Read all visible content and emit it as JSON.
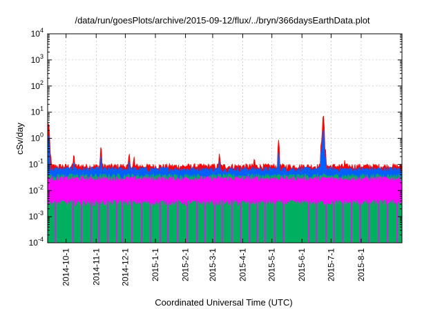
{
  "chart_data": {
    "type": "line",
    "title": "/data/run/goesPlots/archive/2015-09-12/flux/../bryn/366daysEarthData.plot",
    "xlabel": "Coordinated Universal Time (UTC)",
    "ylabel": "cSv/day",
    "yscale": "log",
    "ylim": [
      0.0001,
      10000
    ],
    "xlim": [
      "2014-09-12",
      "2015-09-12"
    ],
    "grid": true,
    "y_ticks": [
      {
        "value": 0.0001,
        "base": "10",
        "exp": "-4"
      },
      {
        "value": 0.001,
        "base": "10",
        "exp": "-3"
      },
      {
        "value": 0.01,
        "base": "10",
        "exp": "-2"
      },
      {
        "value": 0.1,
        "base": "10",
        "exp": "-1"
      },
      {
        "value": 1,
        "base": "10",
        "exp": "0"
      },
      {
        "value": 10,
        "base": "10",
        "exp": "1"
      },
      {
        "value": 100,
        "base": "10",
        "exp": "2"
      },
      {
        "value": 1000,
        "base": "10",
        "exp": "3"
      },
      {
        "value": 10000,
        "base": "10",
        "exp": "4"
      }
    ],
    "x_ticks": [
      {
        "date": "2014-10-01",
        "label": "2014-10-1"
      },
      {
        "date": "2014-11-01",
        "label": "2014-11-1"
      },
      {
        "date": "2014-12-01",
        "label": "2014-12-1"
      },
      {
        "date": "2015-01-01",
        "label": "2015-1-1"
      },
      {
        "date": "2015-02-01",
        "label": "2015-2-1"
      },
      {
        "date": "2015-03-01",
        "label": "2015-3-1"
      },
      {
        "date": "2015-04-01",
        "label": "2015-4-1"
      },
      {
        "date": "2015-05-01",
        "label": "2015-5-1"
      },
      {
        "date": "2015-06-01",
        "label": "2015-6-1"
      },
      {
        "date": "2015-07-01",
        "label": "2015-7-1"
      },
      {
        "date": "2015-08-01",
        "label": "2015-8-1"
      }
    ],
    "series": [
      {
        "color": "#ff0000",
        "baseline": 0.085,
        "spikes": [
          {
            "date": "2014-09-13",
            "value": 4.5
          },
          {
            "date": "2014-09-15",
            "value": 0.3
          },
          {
            "date": "2014-10-09",
            "value": 0.28
          },
          {
            "date": "2014-11-06",
            "value": 0.55
          },
          {
            "date": "2014-12-05",
            "value": 0.3
          },
          {
            "date": "2014-12-10",
            "value": 0.22
          },
          {
            "date": "2015-03-08",
            "value": 0.28
          },
          {
            "date": "2015-04-13",
            "value": 0.2
          },
          {
            "date": "2015-05-08",
            "value": 0.9
          },
          {
            "date": "2015-06-21",
            "value": 0.85
          },
          {
            "date": "2015-06-23",
            "value": 9.0
          },
          {
            "date": "2015-06-25",
            "value": 0.5
          },
          {
            "date": "2015-07-15",
            "value": 0.15
          }
        ]
      },
      {
        "color": "#0060ff",
        "baseline": 0.065,
        "spikes": [
          {
            "date": "2014-09-13",
            "value": 1.6
          },
          {
            "date": "2014-10-09",
            "value": 0.15
          },
          {
            "date": "2014-11-06",
            "value": 0.25
          },
          {
            "date": "2014-12-05",
            "value": 0.15
          },
          {
            "date": "2015-03-08",
            "value": 0.15
          },
          {
            "date": "2015-05-08",
            "value": 0.3
          },
          {
            "date": "2015-06-21",
            "value": 0.4
          },
          {
            "date": "2015-06-23",
            "value": 2.6
          },
          {
            "date": "2015-06-25",
            "value": 0.25
          }
        ]
      },
      {
        "color": "#00b060",
        "baseline": 0.035,
        "spikes": []
      },
      {
        "color": "#ff00ff",
        "baseline": 0.03,
        "low": 0.0045,
        "spikes": [],
        "dropouts": [
          "2014-09-20",
          "2014-10-08",
          "2014-10-17",
          "2014-10-27",
          "2014-11-04",
          "2014-11-13",
          "2014-11-22",
          "2014-11-28",
          "2014-12-08",
          "2014-12-18",
          "2014-12-27",
          "2015-01-06",
          "2015-01-14",
          "2015-01-24",
          "2015-02-03",
          "2015-02-13",
          "2015-02-21",
          "2015-03-03",
          "2015-03-11",
          "2015-03-21",
          "2015-03-30",
          "2015-04-08",
          "2015-04-16",
          "2015-04-24",
          "2015-05-04",
          "2015-05-13",
          "2015-06-08",
          "2015-06-16",
          "2015-06-26",
          "2015-07-04",
          "2015-07-13",
          "2015-07-22",
          "2015-07-31",
          "2015-08-09",
          "2015-08-19",
          "2015-08-28",
          "2015-09-07"
        ]
      }
    ]
  }
}
